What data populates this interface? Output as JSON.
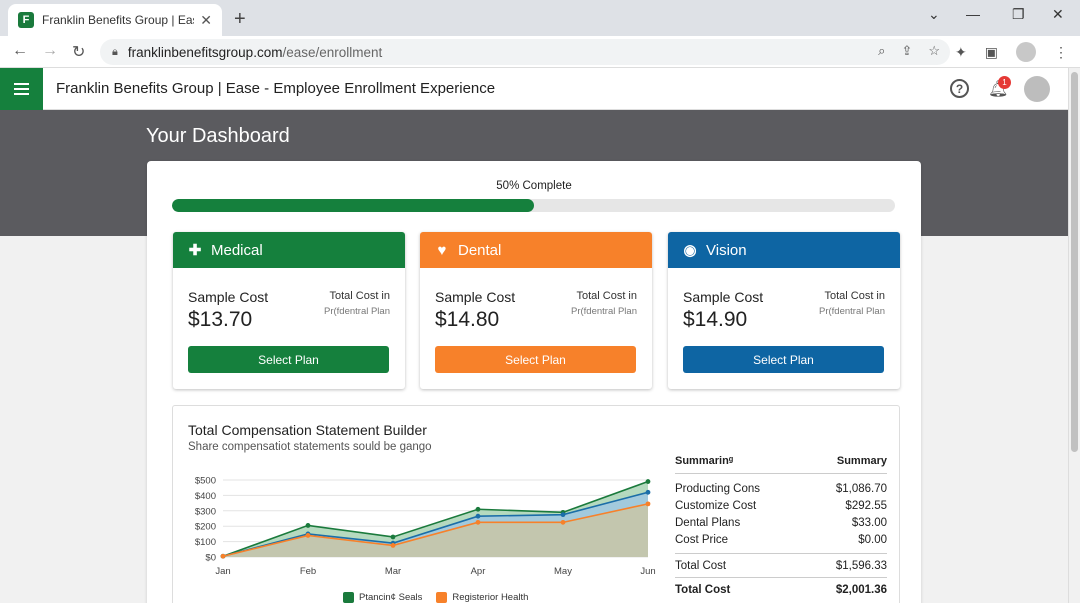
{
  "browser": {
    "tab_title": "Franklin Benefits Group | Ease",
    "tab_favicon_letter": "F",
    "url_host": "franklinbenefitsgroup.com",
    "url_path": "/ease/enrollment"
  },
  "header": {
    "title": "Franklin Benefits Group | Ease - Employee Enrollment Experience",
    "notification_count": "1",
    "help_glyph": "?"
  },
  "dashboard": {
    "title": "Your Dashboard",
    "progress_label": "50% Complete",
    "progress_fraction": 0.5
  },
  "plans": [
    {
      "name": "Medical",
      "icon": "plus-icon",
      "color": "#15803d",
      "sample_label": "Sample Cost",
      "price": "$13.70",
      "total_label": "Total Cost in",
      "plan_label": "Pr(fdentral Plan",
      "button_label": "Select Plan"
    },
    {
      "name": "Dental",
      "icon": "tooth-icon",
      "color": "#f7812a",
      "sample_label": "Sample Cost",
      "price": "$14.80",
      "total_label": "Total Cost in",
      "plan_label": "Pr(fdentral Plan",
      "button_label": "Select Plan"
    },
    {
      "name": "Vision",
      "icon": "eye-icon",
      "color": "#0e65a3",
      "sample_label": "Sample Cost",
      "price": "$14.90",
      "total_label": "Total Cost in",
      "plan_label": "Pr(fdentral Plan",
      "button_label": "Select Plan"
    }
  ],
  "tcs": {
    "title": "Total Compensation Statement Builder",
    "subtitle": "Share compensatiot statements sould be gango"
  },
  "chart_data": {
    "type": "area",
    "categories": [
      "Jan",
      "Feb",
      "Mar",
      "Apr",
      "May",
      "Jun"
    ],
    "y_ticks": [
      "$0",
      "$100",
      "$200",
      "$300",
      "$400",
      "$500"
    ],
    "ylim": [
      0,
      500
    ],
    "series": [
      {
        "name": "Ptancin¢ Seals",
        "color": "#1a7a3c",
        "values": [
          5,
          205,
          130,
          310,
          290,
          490
        ]
      },
      {
        "name": "",
        "color": "#1b6ea8",
        "values": [
          5,
          150,
          90,
          265,
          275,
          420
        ]
      },
      {
        "name": "Registerior Health",
        "color": "#f7812a",
        "values": [
          5,
          140,
          75,
          225,
          225,
          345
        ]
      }
    ]
  },
  "summary": {
    "head_left": "Summarinᵍ",
    "head_right": "Summary",
    "rows": [
      {
        "label": "Producting Cons",
        "value": "$1,086.70"
      },
      {
        "label": "Customize Cost",
        "value": "$292.55"
      },
      {
        "label": "Dental Plans",
        "value": "$33.00"
      },
      {
        "label": "Cost Price",
        "value": "$0.00"
      }
    ],
    "total": {
      "label": "Total Cost",
      "value": "$1,596.33"
    },
    "grand": {
      "label": "Total Cost",
      "value": "$2,001.36"
    }
  }
}
